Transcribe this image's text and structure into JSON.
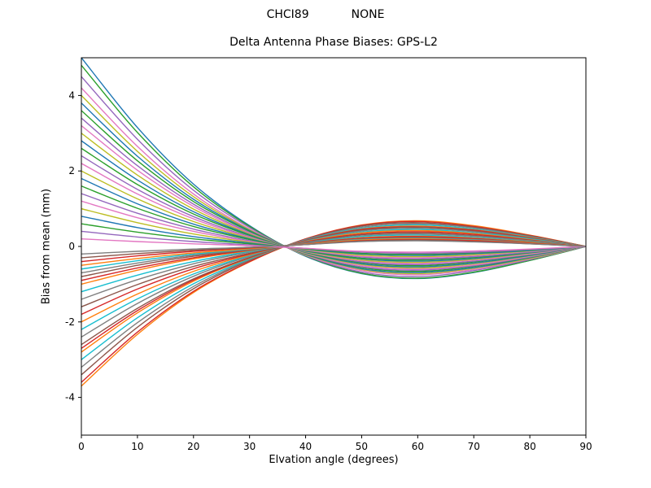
{
  "header": {
    "station": "CHCI89",
    "solution": "NONE"
  },
  "colors": {
    "background": "#ffffff",
    "axes": "#000000"
  },
  "chart_data": {
    "type": "line",
    "title": "Delta Antenna Phase Biases: GPS-L2",
    "suptitle_left": "CHCI89",
    "suptitle_right": "NONE",
    "xlabel": "Elvation angle (degrees)",
    "ylabel": "Bias from mean (mm)",
    "xlim": [
      0,
      90
    ],
    "ylim": [
      -5,
      5
    ],
    "xticks": [
      0,
      10,
      20,
      30,
      40,
      50,
      60,
      70,
      80,
      90
    ],
    "yticks": [
      -4,
      -2,
      0,
      2,
      4
    ],
    "grid": false,
    "legend": null,
    "x": [
      0,
      10,
      20,
      30,
      40,
      50,
      60,
      70,
      80,
      90
    ],
    "series": [
      {
        "color": "#1f77b4",
        "values": [
          5.0,
          3.15,
          1.65,
          0.55,
          -0.26,
          -0.72,
          -0.85,
          -0.69,
          -0.37,
          0.0
        ]
      },
      {
        "color": "#ff7f0e",
        "values": [
          -3.7,
          -2.33,
          -1.22,
          -0.41,
          0.2,
          0.57,
          0.68,
          0.55,
          0.3,
          0.0
        ]
      },
      {
        "color": "#2ca02c",
        "values": [
          4.8,
          3.02,
          1.58,
          0.53,
          -0.25,
          -0.71,
          -0.84,
          -0.68,
          -0.37,
          0.0
        ]
      },
      {
        "color": "#d62728",
        "values": [
          -3.6,
          -2.27,
          -1.19,
          -0.4,
          0.2,
          0.56,
          0.66,
          0.53,
          0.29,
          0.0
        ]
      },
      {
        "color": "#9467bd",
        "values": [
          4.5,
          2.84,
          1.49,
          0.5,
          -0.24,
          -0.68,
          -0.8,
          -0.64,
          -0.35,
          0.0
        ]
      },
      {
        "color": "#8c564b",
        "values": [
          -3.4,
          -2.14,
          -1.12,
          -0.37,
          0.19,
          0.54,
          0.63,
          0.51,
          0.28,
          0.0
        ]
      },
      {
        "color": "#e377c2",
        "values": [
          4.2,
          2.65,
          1.39,
          0.46,
          -0.23,
          -0.64,
          -0.75,
          -0.61,
          -0.33,
          0.0
        ]
      },
      {
        "color": "#7f7f7f",
        "values": [
          -3.2,
          -2.02,
          -1.06,
          -0.35,
          0.18,
          0.51,
          0.6,
          0.49,
          0.26,
          0.0
        ]
      },
      {
        "color": "#bcbd22",
        "values": [
          4.0,
          2.52,
          1.32,
          0.44,
          -0.22,
          -0.61,
          -0.72,
          -0.58,
          -0.32,
          0.0
        ]
      },
      {
        "color": "#17becf",
        "values": [
          -3.0,
          -1.89,
          -0.99,
          -0.33,
          0.17,
          0.48,
          0.57,
          0.46,
          0.25,
          0.0
        ]
      },
      {
        "color": "#1f77b4",
        "values": [
          3.8,
          2.39,
          1.25,
          0.42,
          -0.21,
          -0.59,
          -0.69,
          -0.56,
          -0.3,
          0.0
        ]
      },
      {
        "color": "#ff7f0e",
        "values": [
          -2.8,
          -1.76,
          -0.92,
          -0.31,
          0.16,
          0.46,
          0.54,
          0.44,
          0.24,
          0.0
        ]
      },
      {
        "color": "#2ca02c",
        "values": [
          3.6,
          2.27,
          1.19,
          0.4,
          -0.2,
          -0.56,
          -0.66,
          -0.53,
          -0.29,
          0.0
        ]
      },
      {
        "color": "#d62728",
        "values": [
          -2.7,
          -1.7,
          -0.89,
          -0.3,
          0.16,
          0.45,
          0.52,
          0.43,
          0.23,
          0.0
        ]
      },
      {
        "color": "#9467bd",
        "values": [
          3.4,
          2.14,
          1.12,
          0.37,
          -0.19,
          -0.54,
          -0.63,
          -0.51,
          -0.28,
          0.0
        ]
      },
      {
        "color": "#8c564b",
        "values": [
          -2.6,
          -1.64,
          -0.86,
          -0.29,
          0.15,
          0.43,
          0.51,
          0.41,
          0.22,
          0.0
        ]
      },
      {
        "color": "#e377c2",
        "values": [
          3.2,
          2.02,
          1.06,
          0.35,
          -0.18,
          -0.51,
          -0.6,
          -0.49,
          -0.26,
          0.0
        ]
      },
      {
        "color": "#7f7f7f",
        "values": [
          -2.4,
          -1.51,
          -0.79,
          -0.26,
          0.14,
          0.41,
          0.48,
          0.39,
          0.21,
          0.0
        ]
      },
      {
        "color": "#bcbd22",
        "values": [
          3.0,
          1.89,
          0.99,
          0.33,
          -0.17,
          -0.48,
          -0.57,
          -0.46,
          -0.25,
          0.0
        ]
      },
      {
        "color": "#17becf",
        "values": [
          -2.2,
          -1.39,
          -0.73,
          -0.24,
          0.14,
          0.38,
          0.45,
          0.36,
          0.2,
          0.0
        ]
      },
      {
        "color": "#1f77b4",
        "values": [
          2.8,
          1.76,
          0.92,
          0.31,
          -0.16,
          -0.46,
          -0.54,
          -0.44,
          -0.24,
          0.0
        ]
      },
      {
        "color": "#ff7f0e",
        "values": [
          -2.0,
          -1.26,
          -0.66,
          -0.22,
          0.13,
          0.36,
          0.42,
          0.34,
          0.18,
          0.0
        ]
      },
      {
        "color": "#2ca02c",
        "values": [
          2.6,
          1.64,
          0.86,
          0.29,
          -0.15,
          -0.43,
          -0.51,
          -0.41,
          -0.22,
          0.0
        ]
      },
      {
        "color": "#d62728",
        "values": [
          -1.8,
          -1.13,
          -0.59,
          -0.2,
          0.12,
          0.33,
          0.39,
          0.32,
          0.17,
          0.0
        ]
      },
      {
        "color": "#9467bd",
        "values": [
          2.4,
          1.51,
          0.79,
          0.26,
          -0.14,
          -0.41,
          -0.48,
          -0.39,
          -0.21,
          0.0
        ]
      },
      {
        "color": "#8c564b",
        "values": [
          -1.6,
          -1.01,
          -0.53,
          -0.18,
          0.11,
          0.31,
          0.36,
          0.29,
          0.16,
          0.0
        ]
      },
      {
        "color": "#e377c2",
        "values": [
          2.2,
          1.39,
          0.73,
          0.24,
          -0.14,
          -0.38,
          -0.45,
          -0.36,
          -0.2,
          0.0
        ]
      },
      {
        "color": "#7f7f7f",
        "values": [
          -1.4,
          -0.88,
          -0.46,
          -0.15,
          0.1,
          0.28,
          0.33,
          0.27,
          0.15,
          0.0
        ]
      },
      {
        "color": "#bcbd22",
        "values": [
          2.0,
          1.26,
          0.66,
          0.22,
          -0.13,
          -0.36,
          -0.42,
          -0.34,
          -0.18,
          0.0
        ]
      },
      {
        "color": "#17becf",
        "values": [
          -1.2,
          -0.76,
          -0.4,
          -0.13,
          0.09,
          0.26,
          0.3,
          0.24,
          0.13,
          0.0
        ]
      },
      {
        "color": "#1f77b4",
        "values": [
          1.8,
          1.13,
          0.59,
          0.2,
          -0.12,
          -0.33,
          -0.39,
          -0.32,
          -0.17,
          0.0
        ]
      },
      {
        "color": "#ff7f0e",
        "values": [
          -1.0,
          -0.63,
          -0.33,
          -0.11,
          0.08,
          0.23,
          0.27,
          0.22,
          0.12,
          0.0
        ]
      },
      {
        "color": "#2ca02c",
        "values": [
          1.6,
          1.01,
          0.53,
          0.18,
          -0.11,
          -0.31,
          -0.36,
          -0.29,
          -0.16,
          0.0
        ]
      },
      {
        "color": "#d62728",
        "values": [
          -0.9,
          -0.57,
          -0.3,
          -0.1,
          0.08,
          0.22,
          0.26,
          0.21,
          0.11,
          0.0
        ]
      },
      {
        "color": "#9467bd",
        "values": [
          1.4,
          0.88,
          0.46,
          0.15,
          -0.1,
          -0.28,
          -0.33,
          -0.27,
          -0.15,
          0.0
        ]
      },
      {
        "color": "#8c564b",
        "values": [
          -0.8,
          -0.5,
          -0.26,
          -0.09,
          0.07,
          0.2,
          0.24,
          0.19,
          0.11,
          0.0
        ]
      },
      {
        "color": "#e377c2",
        "values": [
          1.2,
          0.76,
          0.4,
          0.13,
          -0.09,
          -0.26,
          -0.3,
          -0.24,
          -0.13,
          0.0
        ]
      },
      {
        "color": "#7f7f7f",
        "values": [
          -0.7,
          -0.44,
          -0.23,
          -0.08,
          0.07,
          0.19,
          0.22,
          0.18,
          0.1,
          0.0
        ]
      },
      {
        "color": "#bcbd22",
        "values": [
          1.0,
          0.63,
          0.33,
          0.11,
          -0.08,
          -0.23,
          -0.27,
          -0.22,
          -0.12,
          0.0
        ]
      },
      {
        "color": "#17becf",
        "values": [
          -0.6,
          -0.38,
          -0.2,
          -0.07,
          0.06,
          0.18,
          0.21,
          0.17,
          0.09,
          0.0
        ]
      },
      {
        "color": "#1f77b4",
        "values": [
          0.8,
          0.5,
          0.26,
          0.09,
          -0.07,
          -0.2,
          -0.24,
          -0.19,
          -0.11,
          0.0
        ]
      },
      {
        "color": "#ff7f0e",
        "values": [
          -0.5,
          -0.32,
          -0.17,
          -0.06,
          0.06,
          0.17,
          0.2,
          0.16,
          0.09,
          0.0
        ]
      },
      {
        "color": "#2ca02c",
        "values": [
          0.6,
          0.38,
          0.2,
          0.07,
          -0.06,
          -0.18,
          -0.21,
          -0.17,
          -0.09,
          0.0
        ]
      },
      {
        "color": "#d62728",
        "values": [
          -0.4,
          -0.25,
          -0.13,
          -0.04,
          0.05,
          0.15,
          0.18,
          0.15,
          0.08,
          0.0
        ]
      },
      {
        "color": "#9467bd",
        "values": [
          0.4,
          0.25,
          0.13,
          0.04,
          -0.05,
          -0.15,
          -0.18,
          -0.15,
          -0.08,
          0.0
        ]
      },
      {
        "color": "#8c564b",
        "values": [
          -0.3,
          -0.19,
          -0.1,
          -0.03,
          0.05,
          0.14,
          0.17,
          0.13,
          0.07,
          0.0
        ]
      },
      {
        "color": "#e377c2",
        "values": [
          0.2,
          0.13,
          0.07,
          0.02,
          -0.05,
          -0.13,
          -0.15,
          -0.12,
          -0.07,
          0.0
        ]
      },
      {
        "color": "#7f7f7f",
        "values": [
          -0.2,
          -0.13,
          -0.07,
          -0.02,
          0.05,
          0.13,
          0.15,
          0.12,
          0.07,
          0.0
        ]
      }
    ]
  }
}
